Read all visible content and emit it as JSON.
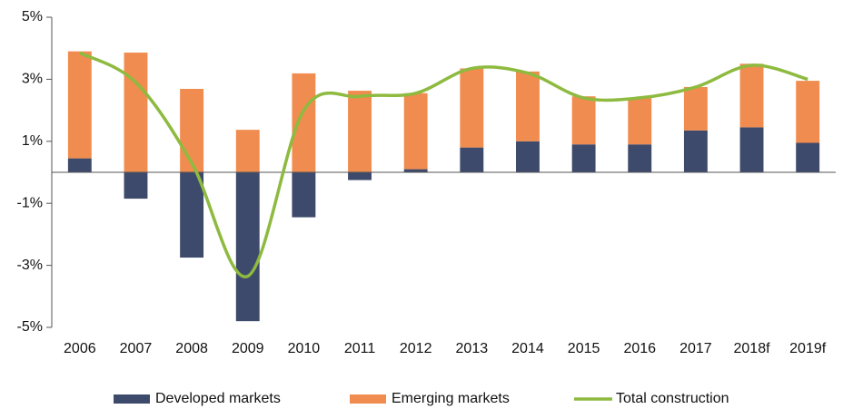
{
  "chart_data": {
    "type": "bar",
    "categories": [
      "2006",
      "2007",
      "2008",
      "2009",
      "2010",
      "2011",
      "2012",
      "2013",
      "2014",
      "2015",
      "2016",
      "2017",
      "2018f",
      "2019f"
    ],
    "series": [
      {
        "name": "Developed markets",
        "color": "#3d4a6b",
        "type": "bar",
        "values": [
          0.45,
          -0.85,
          -2.75,
          -4.8,
          -1.45,
          -0.25,
          0.1,
          0.8,
          1.0,
          0.9,
          0.9,
          1.35,
          1.45,
          0.95
        ]
      },
      {
        "name": "Emerging markets",
        "color": "#f08c4f",
        "type": "bar",
        "values": [
          3.45,
          3.86,
          2.69,
          1.37,
          3.19,
          2.63,
          2.45,
          2.55,
          2.25,
          1.55,
          1.5,
          1.4,
          2.05,
          2.0
        ]
      },
      {
        "name": "Total construction",
        "color": "#8dba3f",
        "type": "line",
        "values": [
          3.85,
          2.9,
          0.3,
          -3.35,
          2.0,
          2.45,
          2.55,
          3.35,
          3.2,
          2.4,
          2.4,
          2.75,
          3.45,
          3.0
        ]
      }
    ],
    "ylim": [
      -5,
      5
    ],
    "yticks": [
      {
        "value": 5,
        "label": "5%"
      },
      {
        "value": 3,
        "label": "3%"
      },
      {
        "value": 1,
        "label": "1%"
      },
      {
        "value": -1,
        "label": "-1%"
      },
      {
        "value": -3,
        "label": "-3%"
      },
      {
        "value": -5,
        "label": "-5%"
      }
    ],
    "grid": false,
    "stacked": true,
    "legend": "bottom"
  }
}
